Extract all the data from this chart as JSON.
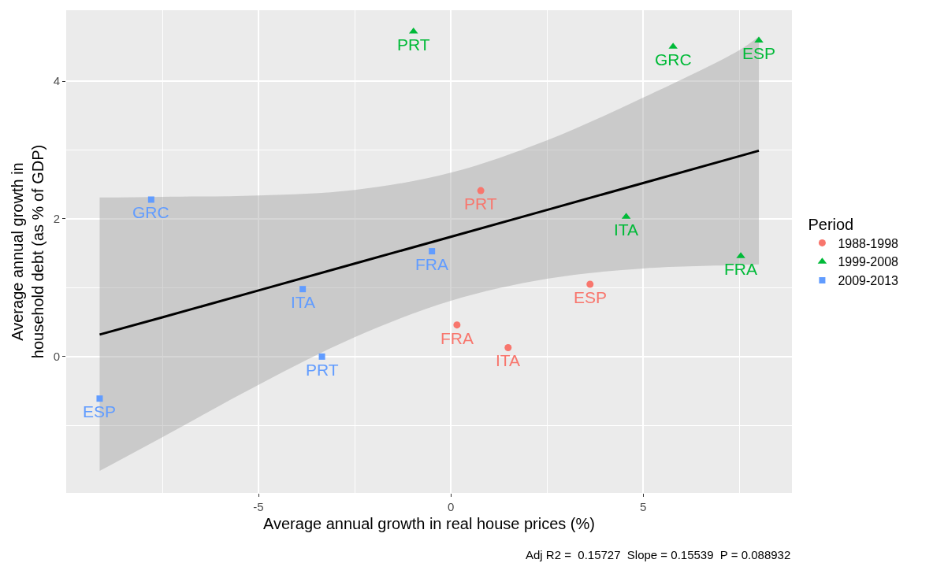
{
  "chart_data": {
    "type": "scatter",
    "xlabel": "Average annual growth in real house prices (%)",
    "ylabel": "Average annual growth in\nhousehold debt (as % of GDP)",
    "legend_title": "Period",
    "xlim": [
      -10.0,
      8.87
    ],
    "ylim": [
      -1.98,
      5.03
    ],
    "xticks": [
      {
        "value": -7.5,
        "label": null
      },
      -5,
      {
        "value": -2.5,
        "label": null
      },
      0,
      {
        "value": 2.5,
        "label": null
      },
      5,
      {
        "value": 7.5,
        "label": null
      }
    ],
    "yticks": [
      {
        "value": -1,
        "label": null
      },
      0,
      {
        "value": 1,
        "label": null
      },
      2,
      {
        "value": 3,
        "label": null
      },
      4
    ],
    "grid": true,
    "legend": "right",
    "series": [
      {
        "name": "1988-1998",
        "color": "#f8766d",
        "marker": "circle",
        "x": [
          0.78,
          3.62,
          0.16,
          1.49
        ],
        "values": [
          2.41,
          1.05,
          0.46,
          0.13
        ]
      },
      {
        "name": "1999-2008",
        "color": "#00ba38",
        "marker": "triangle",
        "x": [
          -0.97,
          5.78,
          8.01,
          4.56,
          7.54
        ],
        "values": [
          4.72,
          4.5,
          4.59,
          2.03,
          1.46
        ]
      },
      {
        "name": "2009-2013",
        "color": "#619cff",
        "marker": "square",
        "x": [
          -7.79,
          -0.49,
          -3.85,
          -3.35,
          -9.13
        ],
        "values": [
          2.28,
          1.53,
          0.98,
          0.0,
          -0.61
        ]
      },
      {
        "type": "line",
        "color": "#000000",
        "marker": "none",
        "x": [
          -9.13,
          -7.5,
          -5,
          -2.5,
          0,
          2.5,
          5,
          7.5,
          8.01
        ],
        "values": [
          0.32,
          0.57,
          0.96,
          1.35,
          1.74,
          2.13,
          2.52,
          2.91,
          2.99
        ],
        "lower": [
          -1.66,
          -1.17,
          -0.41,
          0.28,
          0.81,
          1.13,
          1.28,
          1.33,
          1.34
        ],
        "upper": [
          2.31,
          2.32,
          2.34,
          2.42,
          2.67,
          3.14,
          3.76,
          4.45,
          4.65
        ]
      }
    ],
    "annotations": [
      {
        "text": "PRT",
        "x": 0.78,
        "y": 2.41
      },
      {
        "text": "ESP",
        "x": 3.62,
        "y": 1.05
      },
      {
        "text": "FRA",
        "x": 0.16,
        "y": 0.46
      },
      {
        "text": "ITA",
        "x": 1.49,
        "y": 0.13
      },
      {
        "text": "PRT",
        "x": -0.97,
        "y": 4.72
      },
      {
        "text": "GRC",
        "x": 5.78,
        "y": 4.5
      },
      {
        "text": "ESP",
        "x": 8.01,
        "y": 4.59
      },
      {
        "text": "ITA",
        "x": 4.56,
        "y": 2.03
      },
      {
        "text": "FRA",
        "x": 7.54,
        "y": 1.46
      },
      {
        "text": "GRC",
        "x": -7.79,
        "y": 2.28
      },
      {
        "text": "FRA",
        "x": -0.49,
        "y": 1.53
      },
      {
        "text": "ITA",
        "x": -3.85,
        "y": 0.98
      },
      {
        "text": "PRT",
        "x": -3.35,
        "y": 0.0
      },
      {
        "text": "ESP",
        "x": -9.13,
        "y": -0.61
      },
      "Adj R2 =  0.15727  Slope = 0.15539  P = 0.088932"
    ]
  }
}
